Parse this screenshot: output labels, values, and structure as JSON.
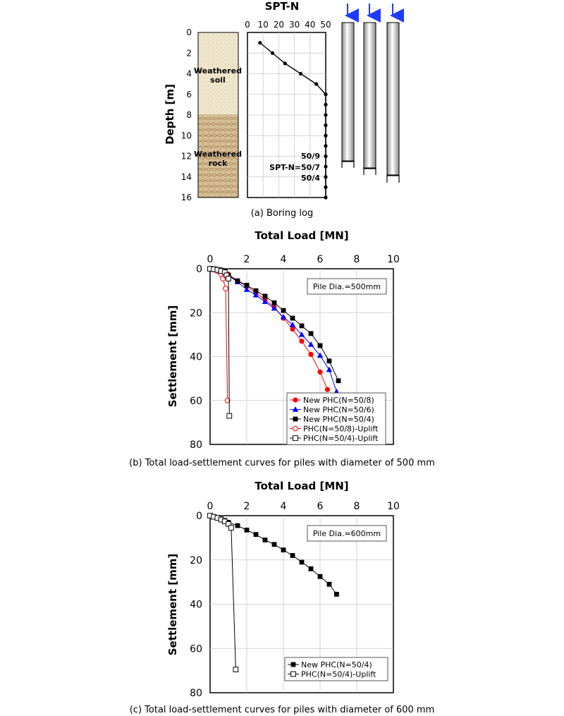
{
  "figure_a": {
    "title": "SPT-N",
    "ylabel": "Depth [m]",
    "caption": "(a) Boring log",
    "layer1": "Weathered\nsoil",
    "layer2": "Weathered\nrock",
    "ann1": "50/9",
    "ann2": "SPT-N=50/7",
    "ann3": "50/4",
    "depth_ticks": [
      "0",
      "2",
      "4",
      "6",
      "8",
      "10",
      "12",
      "14",
      "16"
    ],
    "spt_ticks": [
      "0",
      "10",
      "20",
      "30",
      "40",
      "50"
    ]
  },
  "figure_b": {
    "title": "Total Load [MN]",
    "ylabel": "Settlement [mm]",
    "caption": "(b) Total load-settlement curves for piles with diameter of 500 mm",
    "box": "Pile Dia.=500mm"
  },
  "figure_c": {
    "title": "Total Load [MN]",
    "ylabel": "Settlement [mm]",
    "caption": "(c) Total load-settlement curves for piles with diameter of 600 mm",
    "box": "Pile Dia.=600mm"
  },
  "colors": {
    "red": "#ff0000",
    "blue": "#0000ff",
    "black": "#000000",
    "arrow": "#1f3bff"
  },
  "chart_data": [
    {
      "type": "line",
      "title": "SPT-N",
      "xlabel": "",
      "ylabel": "Depth [m]",
      "xlim": [
        0,
        50
      ],
      "ylim": [
        0,
        16
      ],
      "y_inverted": true,
      "series": [
        {
          "depth": [
            1,
            2,
            3,
            4,
            5,
            6,
            7,
            8,
            9,
            10,
            11,
            12,
            13,
            14,
            15,
            16
          ],
          "N": [
            8,
            16,
            24,
            34,
            44,
            50,
            50,
            50,
            50,
            50,
            50,
            50,
            50,
            50,
            50,
            50
          ]
        }
      ]
    },
    {
      "type": "line",
      "title": "Total Load [MN]",
      "xlabel": "",
      "ylabel": "Settlement [mm]",
      "xlim": [
        0,
        10
      ],
      "ylim": [
        0,
        80
      ],
      "y_inverted": true,
      "x_ticks": [
        "0",
        "2",
        "4",
        "6",
        "8",
        "10"
      ],
      "y_ticks": [
        "0",
        "20",
        "40",
        "60",
        "80"
      ],
      "series": [
        {
          "name": "New PHC(N=50/8)",
          "color": "#ff0000",
          "marker": "circle-filled",
          "x": [
            0.0,
            0.2,
            0.4,
            0.6,
            0.8,
            1.0,
            1.5,
            2.0,
            2.5,
            3.0,
            3.5,
            4.0,
            4.5,
            5.0,
            5.5,
            6.0,
            6.4
          ],
          "y": [
            0.0,
            0.1,
            0.3,
            0.6,
            1.2,
            2.5,
            5.5,
            8.0,
            11.0,
            14.0,
            17.5,
            22.5,
            27.5,
            33.0,
            39.0,
            47.0,
            55.0
          ]
        },
        {
          "name": "New PHC(N=50/6)",
          "color": "#0000ff",
          "marker": "triangle-filled",
          "x": [
            0.0,
            0.2,
            0.4,
            0.6,
            0.8,
            1.0,
            1.5,
            2.0,
            2.5,
            3.0,
            3.5,
            4.0,
            4.5,
            5.0,
            5.5,
            6.0,
            6.5,
            6.9
          ],
          "y": [
            0.0,
            0.1,
            0.3,
            0.6,
            1.2,
            3.0,
            6.0,
            9.5,
            12.0,
            15.0,
            18.0,
            22.0,
            25.5,
            30.0,
            34.5,
            39.5,
            46.0,
            56.0
          ]
        },
        {
          "name": "New PHC(N=50/4)",
          "color": "#000000",
          "marker": "square-filled",
          "x": [
            0.0,
            0.2,
            0.4,
            0.6,
            0.8,
            1.0,
            1.5,
            2.0,
            2.5,
            3.0,
            3.5,
            4.0,
            4.5,
            5.0,
            5.5,
            6.0,
            6.5,
            7.0
          ],
          "y": [
            0.0,
            0.1,
            0.3,
            0.6,
            1.2,
            3.0,
            5.5,
            7.5,
            10.0,
            12.5,
            15.5,
            19.0,
            22.5,
            26.0,
            29.5,
            35.0,
            42.0,
            51.0
          ]
        },
        {
          "name": "PHC(N=50/8)-Uplift",
          "color": "#ff0000",
          "marker": "circle-open",
          "x": [
            0.0,
            0.2,
            0.4,
            0.6,
            0.7,
            0.85,
            0.95
          ],
          "y": [
            0.0,
            0.3,
            1.0,
            2.5,
            4.5,
            9.0,
            60.0
          ]
        },
        {
          "name": "PHC(N=50/4)-Uplift",
          "color": "#000000",
          "marker": "square-open",
          "x": [
            0.0,
            0.2,
            0.4,
            0.6,
            0.8,
            0.9,
            1.0,
            1.05
          ],
          "y": [
            0.0,
            0.2,
            0.5,
            1.0,
            1.6,
            3.0,
            4.5,
            67.0
          ]
        }
      ]
    },
    {
      "type": "line",
      "title": "Total Load [MN]",
      "xlabel": "",
      "ylabel": "Settlement [mm]",
      "xlim": [
        0,
        10
      ],
      "ylim": [
        0,
        80
      ],
      "y_inverted": true,
      "x_ticks": [
        "0",
        "2",
        "4",
        "6",
        "8",
        "10"
      ],
      "y_ticks": [
        "0",
        "20",
        "40",
        "60",
        "80"
      ],
      "series": [
        {
          "name": "New PHC(N=50/4)",
          "color": "#000000",
          "marker": "square-filled",
          "x": [
            0.0,
            0.2,
            0.4,
            0.6,
            0.8,
            1.0,
            1.5,
            2.0,
            2.5,
            3.0,
            3.5,
            4.0,
            4.5,
            5.0,
            5.5,
            6.0,
            6.5,
            6.9
          ],
          "y": [
            0.0,
            0.5,
            1.0,
            1.5,
            2.2,
            3.0,
            4.5,
            6.5,
            8.5,
            11.0,
            13.0,
            15.5,
            18.0,
            21.0,
            24.0,
            27.5,
            31.0,
            35.5
          ]
        },
        {
          "name": "PHC(N=50/4)-Uplift",
          "color": "#000000",
          "marker": "square-open",
          "x": [
            0.0,
            0.2,
            0.4,
            0.6,
            0.8,
            1.0,
            1.15,
            1.4
          ],
          "y": [
            0.0,
            0.5,
            1.0,
            1.8,
            2.6,
            3.8,
            5.5,
            69.5
          ]
        }
      ]
    }
  ]
}
